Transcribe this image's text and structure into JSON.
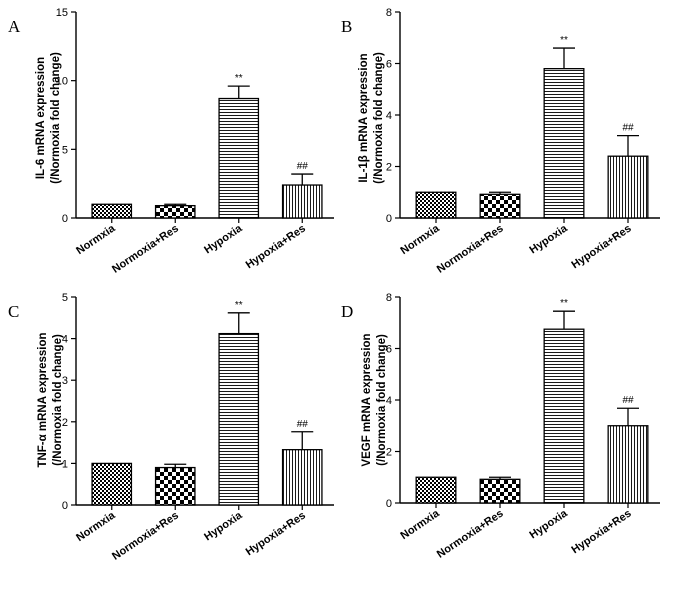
{
  "chart_data": [
    {
      "panel": "A",
      "type": "bar",
      "categories": [
        "Normxia",
        "Normoxia+Res",
        "Hypoxia",
        "Hypoxia+Res"
      ],
      "values": [
        1.0,
        0.9,
        8.7,
        2.4
      ],
      "errors": [
        0.0,
        0.1,
        0.9,
        0.8
      ],
      "annotations": [
        "",
        "",
        "**",
        "##"
      ],
      "ylabel_line1": "IL-6 mRNA expression",
      "ylabel_line2": "(/Normoxia fold change)",
      "ylim": [
        0,
        15
      ],
      "yticks": [
        0,
        5,
        10,
        15
      ]
    },
    {
      "panel": "B",
      "type": "bar",
      "categories": [
        "Normxia",
        "Normoxia+Res",
        "Hypoxia",
        "Hypoxia+Res"
      ],
      "values": [
        1.0,
        0.92,
        5.8,
        2.4
      ],
      "errors": [
        0.0,
        0.08,
        0.8,
        0.8
      ],
      "annotations": [
        "",
        "",
        "**",
        "##"
      ],
      "ylabel_line1": "IL-1β mRNA expression",
      "ylabel_line2": "(/Normoxia fold change)",
      "ylim": [
        0,
        8
      ],
      "yticks": [
        0,
        2,
        4,
        6,
        8
      ]
    },
    {
      "panel": "C",
      "type": "bar",
      "categories": [
        "Normxia",
        "Normoxia+Res",
        "Hypoxia",
        "Hypoxia+Res"
      ],
      "values": [
        1.0,
        0.9,
        4.12,
        1.33
      ],
      "errors": [
        0.0,
        0.08,
        0.5,
        0.43
      ],
      "annotations": [
        "",
        "",
        "**",
        "##"
      ],
      "ylabel_line1": "TNF-α  mRNA expression",
      "ylabel_line2": "(/Normoxia fold change)",
      "ylim": [
        0,
        5
      ],
      "yticks": [
        0,
        1,
        2,
        3,
        4,
        5
      ]
    },
    {
      "panel": "D",
      "type": "bar",
      "categories": [
        "Normxia",
        "Normoxia+Res",
        "Hypoxia",
        "Hypoxia+Res"
      ],
      "values": [
        1.0,
        0.92,
        6.75,
        3.0
      ],
      "errors": [
        0.0,
        0.08,
        0.7,
        0.68
      ],
      "annotations": [
        "",
        "",
        "**",
        "##"
      ],
      "ylabel_line1": "VEGF mRNA expression",
      "ylabel_line2": "(/Normoxia fold change)",
      "ylim": [
        0,
        8
      ],
      "yticks": [
        0,
        2,
        4,
        6,
        8
      ]
    }
  ]
}
